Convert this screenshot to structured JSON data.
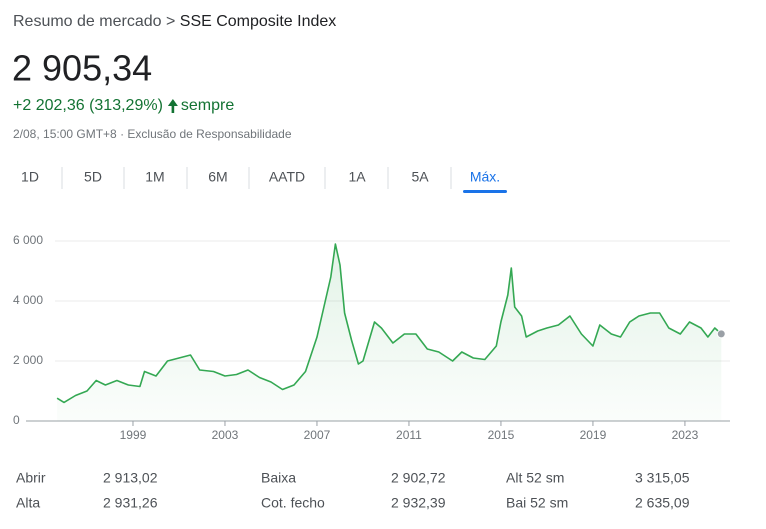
{
  "header": {
    "breadcrumb": [
      "Resumo de mercado",
      "SSE Composite Index"
    ],
    "separator": ">"
  },
  "quote": {
    "price": "2 905,34",
    "change": "+2 202,36 (313,29%)",
    "period": "sempre",
    "timestamp": "2/08, 15:00 GMT+8",
    "dot": "·",
    "disclaimer": "Exclusão de Responsabilidade"
  },
  "tabs": {
    "items": [
      "1D",
      "5D",
      "1M",
      "6M",
      "AATD",
      "1A",
      "5A",
      "Máx."
    ],
    "active": 7
  },
  "chart_data": {
    "type": "line",
    "color": "#34a853",
    "fill": "#e6f4ea",
    "xlim": [
      1993.87,
      2024.96
    ],
    "xticks": [
      1999,
      2003,
      2007,
      2011,
      2015,
      2019,
      2023
    ],
    "ylim": [
      0,
      6000
    ],
    "yticks": [
      0,
      {
        "value": 2000,
        "label": "2 000"
      },
      {
        "value": 4000,
        "label": "4 000"
      },
      {
        "value": 6000,
        "label": "6 000"
      }
    ],
    "grid": true,
    "x": [
      1995.7,
      1996.0,
      1996.5,
      1997.0,
      1997.4,
      1997.8,
      1998.3,
      1998.8,
      1999.3,
      1999.5,
      2000.0,
      2000.5,
      2001.0,
      2001.5,
      2001.9,
      2002.5,
      2003.0,
      2003.5,
      2004.0,
      2004.5,
      2005.0,
      2005.5,
      2006.0,
      2006.5,
      2007.0,
      2007.3,
      2007.6,
      2007.8,
      2008.0,
      2008.2,
      2008.5,
      2008.8,
      2009.0,
      2009.5,
      2009.8,
      2010.3,
      2010.8,
      2011.3,
      2011.8,
      2012.3,
      2012.9,
      2013.3,
      2013.8,
      2014.3,
      2014.8,
      2015.0,
      2015.3,
      2015.45,
      2015.6,
      2015.9,
      2016.1,
      2016.6,
      2017.0,
      2017.5,
      2018.0,
      2018.5,
      2019.0,
      2019.3,
      2019.8,
      2020.2,
      2020.6,
      2021.0,
      2021.5,
      2021.9,
      2022.3,
      2022.8,
      2023.2,
      2023.7,
      2024.0,
      2024.3,
      2024.58
    ],
    "series": [
      {
        "values": [
          760,
          620,
          850,
          1000,
          1350,
          1200,
          1350,
          1200,
          1150,
          1650,
          1500,
          2000,
          2100,
          2200,
          1700,
          1650,
          1500,
          1550,
          1700,
          1450,
          1300,
          1050,
          1200,
          1650,
          2800,
          3800,
          4800,
          5900,
          5200,
          3600,
          2700,
          1900,
          2000,
          3300,
          3100,
          2600,
          2900,
          2900,
          2400,
          2300,
          2000,
          2300,
          2100,
          2050,
          2500,
          3300,
          4200,
          5100,
          3800,
          3500,
          2800,
          3000,
          3100,
          3200,
          3500,
          2900,
          2500,
          3200,
          2900,
          2800,
          3300,
          3500,
          3600,
          3600,
          3100,
          2900,
          3300,
          3100,
          2800,
          3100,
          2905
        ]
      }
    ]
  },
  "stats": {
    "rows": [
      [
        "Abrir",
        "2 913,02",
        "Baixa",
        "2 902,72",
        "Alt 52 sm",
        "3 315,05"
      ],
      [
        "Alta",
        "2 931,26",
        "Cot. fecho",
        "2 932,39",
        "Bai 52 sm",
        "2 635,09"
      ]
    ]
  }
}
